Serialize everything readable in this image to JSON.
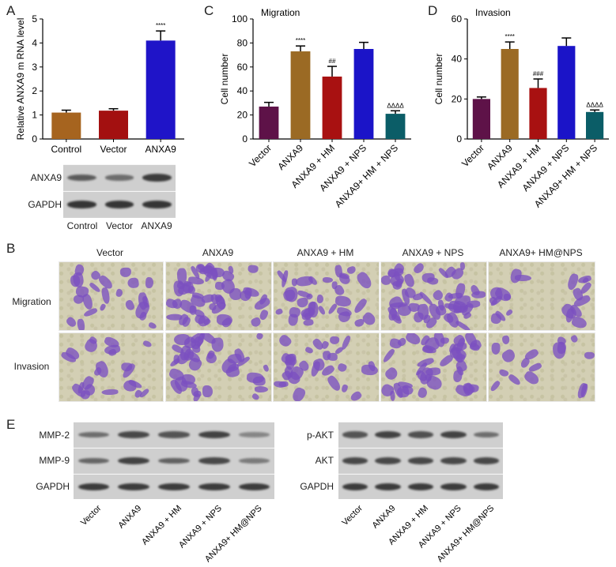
{
  "panel_labels": {
    "a": "A",
    "b": "B",
    "c": "C",
    "d": "D",
    "e": "E"
  },
  "chart_data": [
    {
      "type": "bar",
      "panel": "A",
      "title": "",
      "xlabel": "",
      "ylabel": "Relative ANXA9 m RNA level",
      "ylim": [
        0,
        5
      ],
      "yticks": [
        0,
        1,
        2,
        3,
        4,
        5
      ],
      "categories": [
        "Control",
        "Vector",
        "ANXA9"
      ],
      "values": [
        1.1,
        1.18,
        4.1
      ],
      "errors": [
        0.1,
        0.08,
        0.4
      ],
      "annotations": [
        "",
        "",
        "****"
      ],
      "colors": [
        "#a6641f",
        "#a31010",
        "#1f14c8"
      ]
    },
    {
      "type": "bar",
      "panel": "C",
      "title": "Migration",
      "xlabel": "",
      "ylabel": "Cell number",
      "ylim": [
        0,
        100
      ],
      "yticks": [
        0,
        20,
        40,
        60,
        80,
        100
      ],
      "categories": [
        "Vector",
        "ANXA9",
        "ANXA9 + HM",
        "ANXA9 + NPS",
        "ANXA9+ HM + NPS"
      ],
      "values": [
        27,
        73,
        52,
        75,
        21
      ],
      "errors": [
        3.5,
        4.5,
        8.5,
        5.5,
        2.5
      ],
      "annotations": [
        "",
        "****",
        "##",
        "",
        "ΔΔΔΔ"
      ],
      "colors": [
        "#5e1248",
        "#9b6a24",
        "#a81111",
        "#1b14c8",
        "#0b5d67"
      ]
    },
    {
      "type": "bar",
      "panel": "D",
      "title": "Invasion",
      "xlabel": "",
      "ylabel": "Cell number",
      "ylim": [
        0,
        60
      ],
      "yticks": [
        0,
        20,
        40,
        60
      ],
      "categories": [
        "Vector",
        "ANXA9",
        "ANXA9 + HM",
        "ANXA9 + NPS",
        "ANXA9+ HM + NPS"
      ],
      "values": [
        20,
        45,
        25.5,
        46.5,
        13.5
      ],
      "errors": [
        1,
        3.5,
        4.5,
        4,
        1
      ],
      "annotations": [
        "",
        "****",
        "###",
        "",
        "ΔΔΔΔ"
      ],
      "colors": [
        "#5e1248",
        "#9b6a24",
        "#a81111",
        "#1b14c8",
        "#0b5d67"
      ]
    }
  ],
  "blot_a": {
    "rows": [
      "ANXA9",
      "GAPDH"
    ],
    "lanes": [
      "Control",
      "Vector",
      "ANXA9"
    ],
    "band_strength": [
      [
        0.6,
        0.45,
        0.85
      ],
      [
        0.9,
        0.9,
        0.9
      ]
    ]
  },
  "panel_b": {
    "columns": [
      "Vector",
      "ANXA9",
      "ANXA9 + HM",
      "ANXA9 + NPS",
      "ANXA9+ HM@NPS"
    ],
    "rows": [
      "Migration",
      "Invasion"
    ],
    "cell_density": [
      [
        0.35,
        0.95,
        0.6,
        0.95,
        0.25
      ],
      [
        0.3,
        0.7,
        0.5,
        0.75,
        0.2
      ]
    ]
  },
  "blot_e_left": {
    "rows": [
      "MMP-2",
      "MMP-9",
      "GAPDH"
    ],
    "lanes": [
      "Vector",
      "ANXA9",
      "ANXA9 + HM",
      "ANXA9 + NPS",
      "ANXA9+ HM@NPS"
    ],
    "band_strength": [
      [
        0.45,
        0.75,
        0.65,
        0.8,
        0.25
      ],
      [
        0.5,
        0.8,
        0.55,
        0.75,
        0.35
      ],
      [
        0.85,
        0.85,
        0.85,
        0.85,
        0.85
      ]
    ]
  },
  "blot_e_right": {
    "rows": [
      "p-AKT",
      "AKT",
      "GAPDH"
    ],
    "lanes": [
      "Vector",
      "ANXA9",
      "ANXA9 + HM",
      "ANXA9 + NPS",
      "ANXA9+ HM@NPS"
    ],
    "band_strength": [
      [
        0.65,
        0.8,
        0.7,
        0.8,
        0.45
      ],
      [
        0.75,
        0.75,
        0.75,
        0.75,
        0.75
      ],
      [
        0.85,
        0.85,
        0.85,
        0.85,
        0.85
      ]
    ]
  }
}
